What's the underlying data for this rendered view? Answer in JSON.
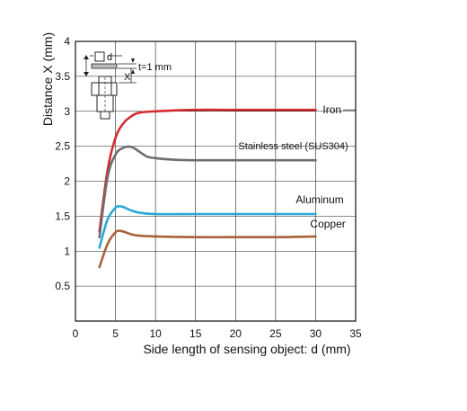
{
  "chart_data": {
    "type": "line",
    "xlabel": "Side length of sensing object: d (mm)",
    "ylabel": "Distance X (mm)",
    "xlim": [
      0,
      35
    ],
    "ylim": [
      0,
      4
    ],
    "x_ticks": [
      "0",
      "5",
      "10",
      "15",
      "20",
      "25",
      "30",
      "35"
    ],
    "y_ticks": [
      "0.5",
      "1",
      "1.5",
      "2",
      "2.5",
      "3",
      "3.5",
      "4"
    ],
    "grid": true,
    "series": [
      {
        "name": "Iron",
        "color": "#d42a2f",
        "points": [
          [
            3,
            1.28
          ],
          [
            4,
            2.15
          ],
          [
            5,
            2.62
          ],
          [
            6,
            2.83
          ],
          [
            7,
            2.93
          ],
          [
            8,
            2.98
          ],
          [
            10,
            3.0
          ],
          [
            15,
            3.02
          ],
          [
            20,
            3.02
          ],
          [
            25,
            3.02
          ],
          [
            30,
            3.02
          ]
        ]
      },
      {
        "name": "Stainless steel (SUS304)",
        "color": "#6e6e6e",
        "points": [
          [
            3,
            1.2
          ],
          [
            4,
            2.05
          ],
          [
            5,
            2.38
          ],
          [
            6,
            2.48
          ],
          [
            7,
            2.49
          ],
          [
            8,
            2.42
          ],
          [
            9,
            2.35
          ],
          [
            10,
            2.33
          ],
          [
            12,
            2.31
          ],
          [
            15,
            2.3
          ],
          [
            20,
            2.3
          ],
          [
            25,
            2.3
          ],
          [
            30,
            2.3
          ]
        ]
      },
      {
        "name": "Aluminum",
        "color": "#29a8d6",
        "points": [
          [
            3,
            1.05
          ],
          [
            4,
            1.45
          ],
          [
            5,
            1.62
          ],
          [
            5.5,
            1.64
          ],
          [
            6,
            1.63
          ],
          [
            7,
            1.58
          ],
          [
            8,
            1.55
          ],
          [
            10,
            1.53
          ],
          [
            15,
            1.53
          ],
          [
            20,
            1.53
          ],
          [
            25,
            1.53
          ],
          [
            30,
            1.53
          ]
        ]
      },
      {
        "name": "Copper",
        "color": "#a8623a",
        "points": [
          [
            3,
            0.77
          ],
          [
            4,
            1.1
          ],
          [
            5,
            1.27
          ],
          [
            5.5,
            1.29
          ],
          [
            6,
            1.28
          ],
          [
            7,
            1.24
          ],
          [
            8,
            1.22
          ],
          [
            10,
            1.21
          ],
          [
            15,
            1.2
          ],
          [
            20,
            1.2
          ],
          [
            25,
            1.2
          ],
          [
            30,
            1.21
          ]
        ]
      }
    ]
  },
  "inset": {
    "d_label": "d",
    "x_label": "X",
    "t_label": "t=1 mm"
  }
}
